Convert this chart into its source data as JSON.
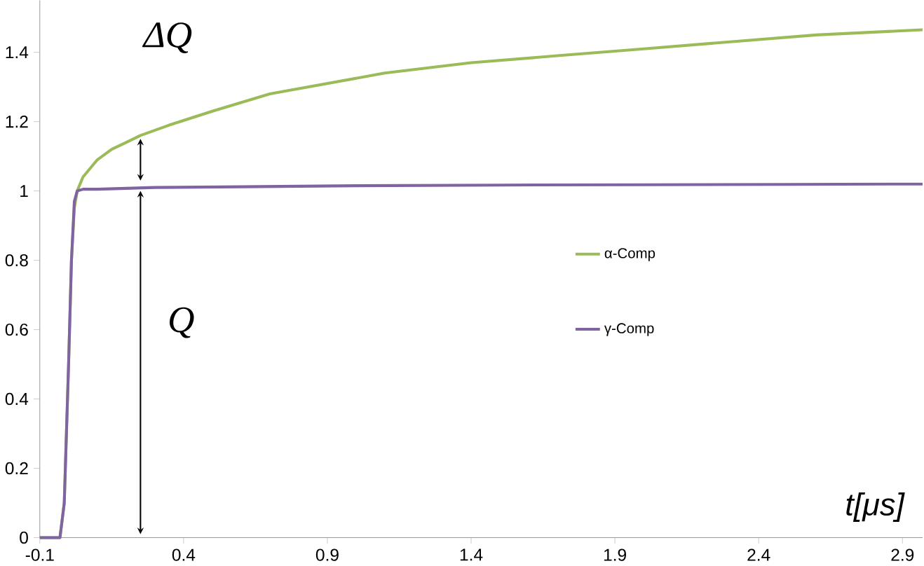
{
  "chart_data": {
    "type": "line",
    "xlabel": "t[μs]",
    "xlim": [
      -0.1,
      2.97
    ],
    "ylim": [
      0,
      1.55
    ],
    "xticks": [
      -0.1,
      0.4,
      0.9,
      1.4,
      1.9,
      2.4,
      2.9
    ],
    "yticks": [
      0,
      0.2,
      0.4,
      0.6,
      0.8,
      1,
      1.2,
      1.4
    ],
    "grid": false,
    "legend": "right",
    "marker": "none",
    "line_style": "solid",
    "annotations": [
      "ΔQ",
      "Q"
    ],
    "series": [
      {
        "name": "α-Comp",
        "color": "#9bbb59",
        "x": [
          -0.1,
          -0.03,
          -0.015,
          0.0,
          0.01,
          0.02,
          0.03,
          0.05,
          0.1,
          0.15,
          0.2,
          0.25,
          0.35,
          0.5,
          0.7,
          0.9,
          1.1,
          1.4,
          1.7,
          2.0,
          2.3,
          2.6,
          2.97
        ],
        "values": [
          0,
          0,
          0.1,
          0.5,
          0.8,
          0.95,
          1.0,
          1.04,
          1.09,
          1.12,
          1.14,
          1.16,
          1.19,
          1.23,
          1.28,
          1.31,
          1.34,
          1.37,
          1.39,
          1.41,
          1.43,
          1.45,
          1.465
        ]
      },
      {
        "name": "γ-Comp",
        "color": "#8064a2",
        "x": [
          -0.1,
          -0.03,
          -0.015,
          0.0,
          0.01,
          0.02,
          0.03,
          0.05,
          0.1,
          0.3,
          0.6,
          1.0,
          1.5,
          2.0,
          2.5,
          2.97
        ],
        "values": [
          0,
          0,
          0.1,
          0.5,
          0.8,
          0.97,
          1.0,
          1.005,
          1.005,
          1.01,
          1.012,
          1.015,
          1.017,
          1.018,
          1.019,
          1.02
        ]
      }
    ]
  }
}
